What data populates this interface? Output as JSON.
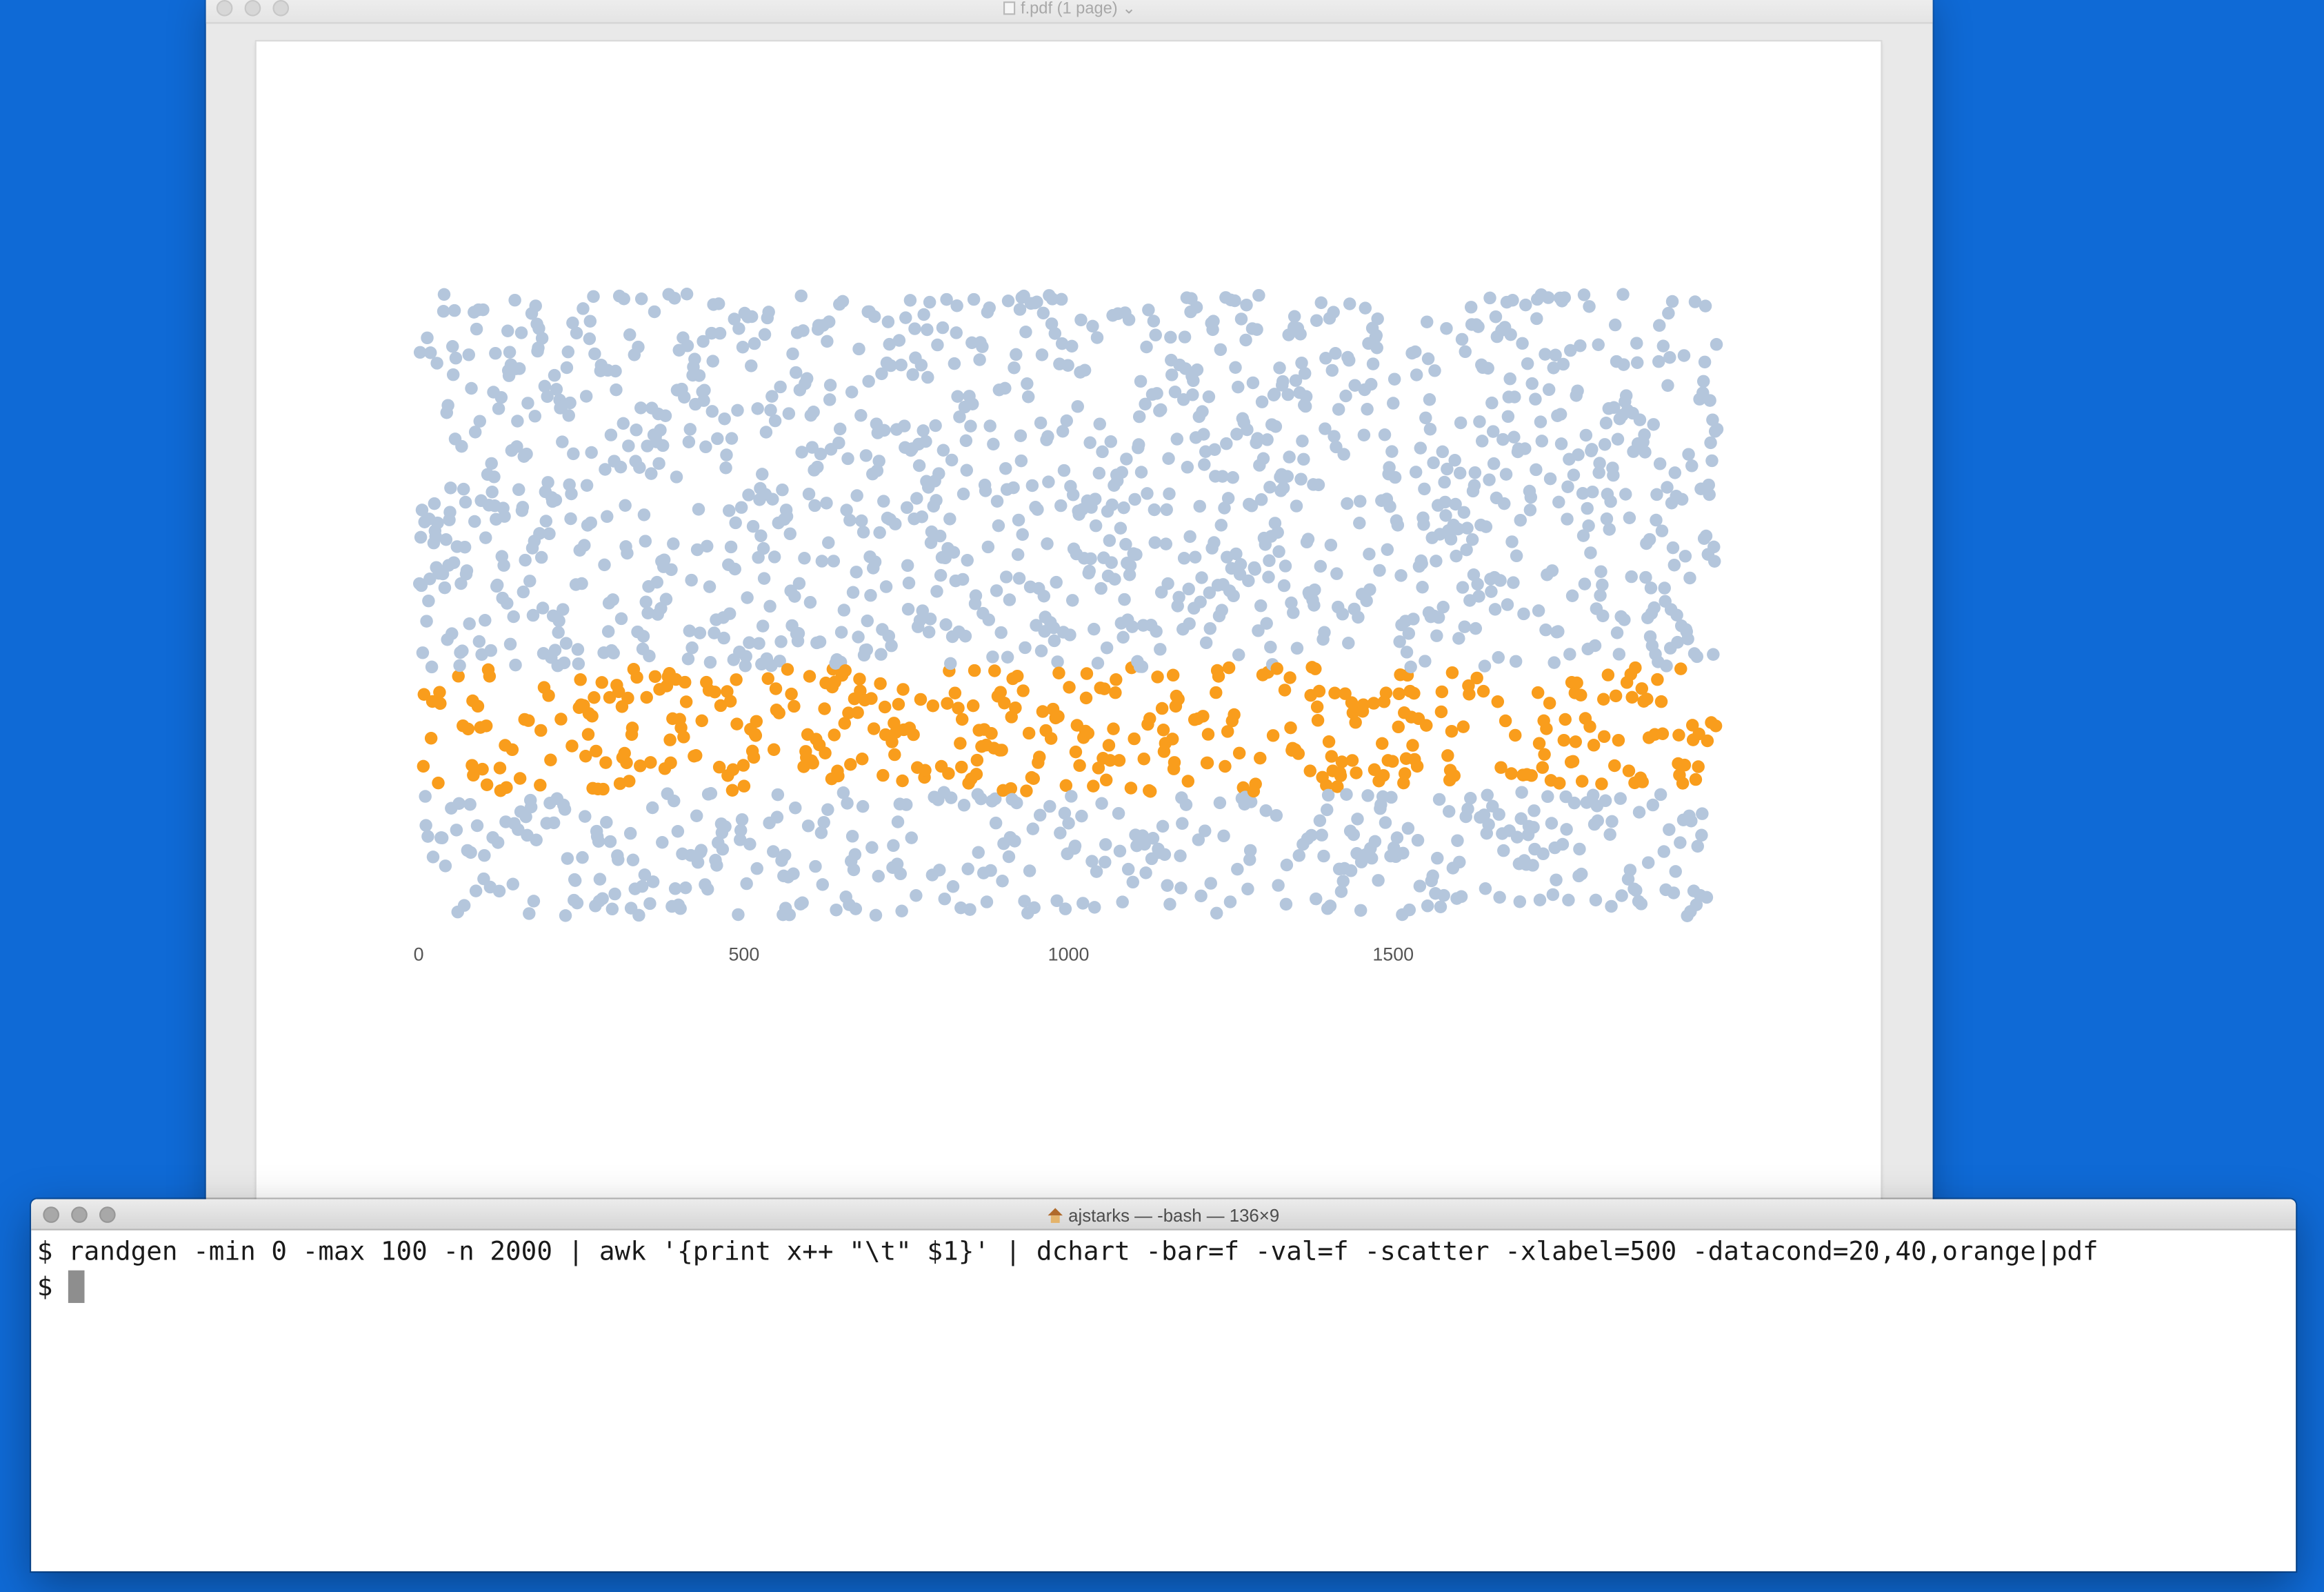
{
  "preview": {
    "title": "f.pdf (1 page)",
    "title_chevron": "⌄",
    "doc_icon": "pdf-document-icon"
  },
  "terminal": {
    "title": "ajstarks — -bash — 136×9",
    "title_icon": "home-icon",
    "lines": [
      "$ randgen -min 0 -max 100 -n 2000 | awk '{print x++ \"\\t\" $1}' | dchart -bar=f -val=f -scatter -xlabel=500 -datacond=20,40,orange|pdf",
      "$ "
    ]
  },
  "chart_data": {
    "type": "scatter",
    "xlim": [
      0,
      2000
    ],
    "ylim": [
      0,
      100
    ],
    "x_tick_labels": [
      "0",
      "500",
      "1000",
      "1500"
    ],
    "x_ticks": [
      0,
      500,
      1000,
      1500
    ],
    "grid": false,
    "n_points": 2000,
    "colors": {
      "default": "#b4c6dc",
      "condition": "#f99d1c"
    },
    "condition": {
      "min": 20,
      "max": 40,
      "color": "orange"
    },
    "y_value_range": [
      0,
      100
    ]
  }
}
